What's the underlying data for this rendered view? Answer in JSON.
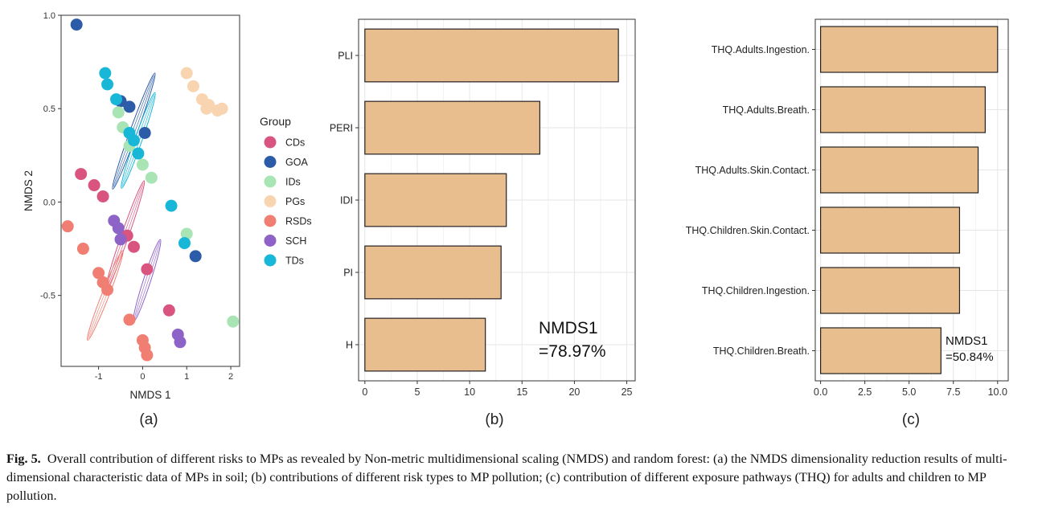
{
  "chart_data": [
    {
      "type": "scatter",
      "panel_label": "(a)",
      "xlabel": "NMDS 1",
      "ylabel": "NMDS 2",
      "xlim": [
        -1.85,
        2.2
      ],
      "ylim": [
        -0.88,
        1.0
      ],
      "xticks": [
        {
          "v": -1,
          "label": "-1"
        },
        {
          "v": 0,
          "label": "0"
        },
        {
          "v": 1,
          "label": "1"
        },
        {
          "v": 2,
          "label": "2"
        }
      ],
      "yticks": [
        {
          "v": 1.0,
          "label": "1.0"
        },
        {
          "v": 0.5,
          "label": "0.5"
        },
        {
          "v": 0.0,
          "label": "0.0"
        },
        {
          "v": -0.5,
          "label": "-0.5"
        }
      ],
      "legend_title": "Group",
      "groups": [
        {
          "name": "CDs",
          "color": "#D9547E",
          "points": [
            [
              -1.4,
              0.15
            ],
            [
              -1.1,
              0.09
            ],
            [
              -0.9,
              0.03
            ],
            [
              -0.35,
              -0.18
            ],
            [
              -0.2,
              -0.24
            ],
            [
              0.1,
              -0.36
            ],
            [
              0.6,
              -0.58
            ]
          ],
          "ellipse": {
            "cx": -0.4,
            "cy": -0.18,
            "rx": 1.15,
            "ry": 0.03,
            "angle": -34
          }
        },
        {
          "name": "GOA",
          "color": "#2C5BA8",
          "points": [
            [
              -1.5,
              0.95
            ],
            [
              -0.5,
              0.54
            ],
            [
              -0.3,
              0.51
            ],
            [
              0.05,
              0.37
            ],
            [
              1.2,
              -0.29
            ]
          ],
          "ellipse": {
            "cx": -0.2,
            "cy": 0.38,
            "rx": 1.22,
            "ry": 0.03,
            "angle": -33
          }
        },
        {
          "name": "IDs",
          "color": "#A9E4B5",
          "points": [
            [
              -0.55,
              0.48
            ],
            [
              -0.45,
              0.4
            ],
            [
              -0.3,
              0.3
            ],
            [
              0.0,
              0.2
            ],
            [
              0.2,
              0.13
            ],
            [
              1.0,
              -0.17
            ],
            [
              2.05,
              -0.64
            ]
          ],
          "ellipse": null
        },
        {
          "name": "PGs",
          "color": "#F8D4B0",
          "points": [
            [
              1.0,
              0.69
            ],
            [
              1.15,
              0.62
            ],
            [
              1.35,
              0.55
            ],
            [
              1.5,
              0.52
            ],
            [
              1.7,
              0.49
            ],
            [
              1.45,
              0.5
            ],
            [
              1.8,
              0.5
            ]
          ],
          "ellipse": null
        },
        {
          "name": "RSDs",
          "color": "#F07E72",
          "points": [
            [
              -1.7,
              -0.13
            ],
            [
              -1.35,
              -0.25
            ],
            [
              -1.0,
              -0.38
            ],
            [
              -0.9,
              -0.43
            ],
            [
              -0.8,
              -0.47
            ],
            [
              -0.3,
              -0.63
            ],
            [
              0.0,
              -0.74
            ],
            [
              0.05,
              -0.78
            ],
            [
              0.1,
              -0.82
            ]
          ],
          "ellipse": {
            "cx": -0.85,
            "cy": -0.5,
            "rx": 0.95,
            "ry": 0.03,
            "angle": -31
          }
        },
        {
          "name": "SCH",
          "color": "#8E63C8",
          "points": [
            [
              -0.65,
              -0.1
            ],
            [
              -0.55,
              -0.14
            ],
            [
              -0.5,
              -0.2
            ],
            [
              0.8,
              -0.71
            ],
            [
              0.85,
              -0.75
            ]
          ],
          "ellipse": {
            "cx": 0.1,
            "cy": -0.42,
            "rx": 0.85,
            "ry": 0.03,
            "angle": -36
          }
        },
        {
          "name": "TDs",
          "color": "#18B7D8",
          "points": [
            [
              -0.85,
              0.69
            ],
            [
              -0.8,
              0.63
            ],
            [
              -0.6,
              0.55
            ],
            [
              -0.3,
              0.37
            ],
            [
              -0.2,
              0.33
            ],
            [
              -0.1,
              0.26
            ],
            [
              0.65,
              -0.02
            ],
            [
              0.95,
              -0.22
            ]
          ],
          "ellipse": {
            "cx": -0.1,
            "cy": 0.33,
            "rx": 1.0,
            "ry": 0.03,
            "angle": -34
          }
        }
      ]
    },
    {
      "type": "bar",
      "orientation": "horizontal",
      "panel_label": "(b)",
      "categories": [
        "PLI",
        "PERI",
        "IDI",
        "PI",
        "H"
      ],
      "values": [
        24.2,
        16.7,
        13.5,
        13.0,
        11.5
      ],
      "xlim": [
        -0.6,
        25.8
      ],
      "xticks": [
        0,
        5,
        10,
        15,
        20,
        25
      ],
      "annotation": [
        "NMDS1",
        "=78.97%"
      ],
      "bar_color": "#E8BE8E"
    },
    {
      "type": "bar",
      "orientation": "horizontal",
      "panel_label": "(c)",
      "categories": [
        "THQ.Adults.Ingestion.",
        "THQ.Adults.Breath.",
        "THQ.Adults.Skin.Contact.",
        "THQ.Children.Skin.Contact.",
        "THQ.Children.Ingestion.",
        "THQ.Children.Breath."
      ],
      "values": [
        10.0,
        9.3,
        8.9,
        7.85,
        7.85,
        6.8
      ],
      "xlim": [
        -0.3,
        10.6
      ],
      "xticks": [
        {
          "v": 0,
          "label": "0.0"
        },
        {
          "v": 2.5,
          "label": "2.5"
        },
        {
          "v": 5,
          "label": "5.0"
        },
        {
          "v": 7.5,
          "label": "7.5"
        },
        {
          "v": 10,
          "label": "10.0"
        }
      ],
      "annotation": [
        "NMDS1",
        "=50.84%"
      ],
      "bar_color": "#E8BE8E"
    }
  ],
  "caption": {
    "label": "Fig. 5.",
    "text": "Overall contribution of different risks to MPs as revealed by Non-metric multidimensional scaling (NMDS) and random forest: (a) the NMDS dimensionality reduction results of multi-dimensional characteristic data of MPs in soil; (b) contributions of different risk types to MP pollution; (c) contribution of different exposure pathways (THQ) for adults and children to MP pollution."
  }
}
